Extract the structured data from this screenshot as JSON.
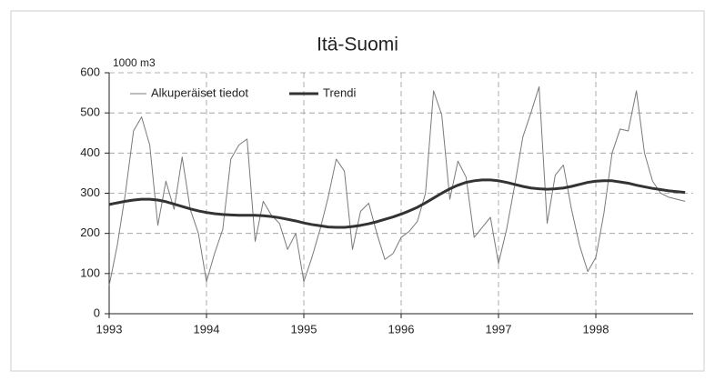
{
  "chart_data": {
    "type": "line",
    "title": "Itä-Suomi",
    "ylabel": "1000 m3",
    "x": [
      1993,
      1993.083,
      1993.167,
      1993.25,
      1993.333,
      1993.417,
      1993.5,
      1993.583,
      1993.667,
      1993.75,
      1993.833,
      1993.917,
      1994,
      1994.083,
      1994.167,
      1994.25,
      1994.333,
      1994.417,
      1994.5,
      1994.583,
      1994.667,
      1994.75,
      1994.833,
      1994.917,
      1995,
      1995.083,
      1995.167,
      1995.25,
      1995.333,
      1995.417,
      1995.5,
      1995.583,
      1995.667,
      1995.75,
      1995.833,
      1995.917,
      1996,
      1996.083,
      1996.167,
      1996.25,
      1996.333,
      1996.417,
      1996.5,
      1996.583,
      1996.667,
      1996.75,
      1996.833,
      1996.917,
      1997,
      1997.083,
      1997.167,
      1997.25,
      1997.333,
      1997.417,
      1997.5,
      1997.583,
      1997.667,
      1997.75,
      1997.833,
      1997.917,
      1998,
      1998.083,
      1998.167,
      1998.25,
      1998.333,
      1998.417,
      1998.5,
      1998.583,
      1998.667,
      1998.75,
      1998.833,
      1998.917
    ],
    "series": [
      {
        "name": "Alkuperäiset tiedot",
        "color": "#7a7a7a",
        "linewidth": 1,
        "values": [
          70,
          170,
          300,
          455,
          490,
          420,
          220,
          330,
          260,
          390,
          260,
          200,
          80,
          150,
          210,
          385,
          420,
          435,
          180,
          280,
          245,
          225,
          160,
          200,
          80,
          140,
          210,
          290,
          385,
          355,
          160,
          255,
          275,
          200,
          135,
          150,
          190,
          205,
          230,
          300,
          555,
          495,
          285,
          380,
          340,
          190,
          215,
          240,
          125,
          210,
          320,
          440,
          500,
          565,
          225,
          345,
          370,
          260,
          170,
          105,
          140,
          250,
          400,
          460,
          455,
          555,
          400,
          330,
          300,
          290,
          285,
          280
        ]
      },
      {
        "name": "Trendi",
        "color": "#333333",
        "linewidth": 3,
        "values": [
          272,
          276,
          280,
          283,
          285,
          285,
          283,
          279,
          273,
          267,
          261,
          256,
          252,
          249,
          247,
          246,
          245,
          245,
          245,
          244,
          242,
          239,
          235,
          231,
          226,
          222,
          219,
          216,
          215,
          215,
          217,
          220,
          224,
          229,
          235,
          241,
          248,
          256,
          265,
          276,
          288,
          300,
          311,
          320,
          327,
          331,
          333,
          333,
          331,
          327,
          322,
          317,
          313,
          311,
          310,
          311,
          313,
          317,
          322,
          327,
          330,
          331,
          331,
          328,
          325,
          320,
          316,
          312,
          309,
          306,
          304,
          302
        ]
      }
    ],
    "xlim": [
      1993,
      1999
    ],
    "xticks": [
      1993,
      1994,
      1995,
      1996,
      1997,
      1998
    ],
    "ylim": [
      0,
      600
    ],
    "yticks": [
      0,
      100,
      200,
      300,
      400,
      500,
      600
    ],
    "grid": true,
    "legend": "top"
  }
}
